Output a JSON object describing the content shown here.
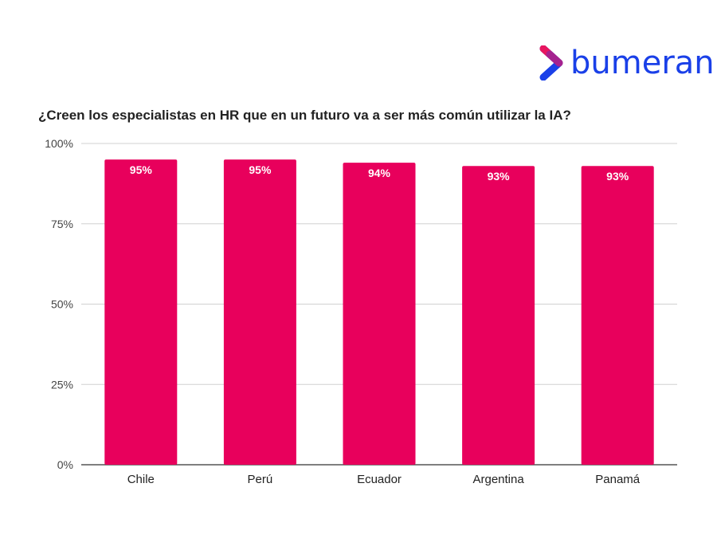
{
  "brand": {
    "name": "bumeran",
    "colors": {
      "text": "#1a40e8",
      "chevron_top": "#e8155f",
      "chevron_bottom": "#1a40e8"
    }
  },
  "chart_data": {
    "type": "bar",
    "title": "¿Creen los especialistas en HR que en un futuro va a ser más común utilizar la IA?",
    "xlabel": "",
    "ylabel": "",
    "categories": [
      "Chile",
      "Perú",
      "Ecuador",
      "Argentina",
      "Panamá"
    ],
    "values": [
      95,
      95,
      94,
      93,
      93
    ],
    "data_labels": [
      "95%",
      "95%",
      "94%",
      "93%",
      "93%"
    ],
    "ylim": [
      0,
      100
    ],
    "yticks": [
      0,
      25,
      50,
      75,
      100
    ],
    "ytick_labels": [
      "0%",
      "25%",
      "50%",
      "75%",
      "100%"
    ],
    "grid": true,
    "bar_color": "#e8005c",
    "grid_color": "#d0d0d0",
    "label_color": "#ffffff"
  }
}
